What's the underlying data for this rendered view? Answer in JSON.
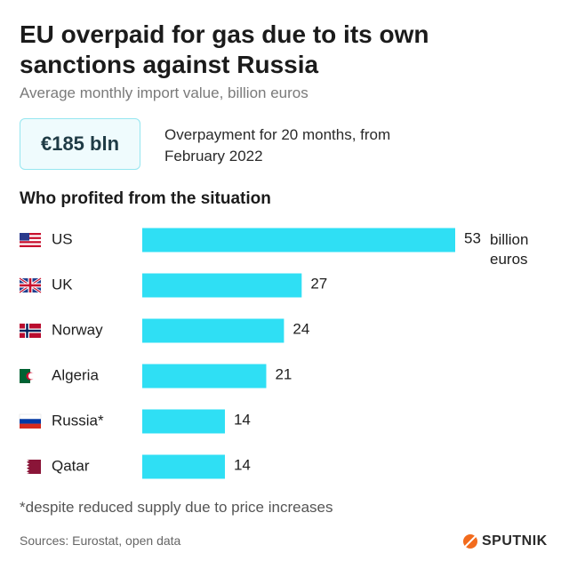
{
  "title": "EU overpaid for gas due to its own sanctions against Russia",
  "subtitle": "Average monthly import value, billion euros",
  "highlight": {
    "value": "€185 bln",
    "text": "Overpayment for 20 months, from February 2022"
  },
  "chart_data": {
    "type": "bar",
    "orientation": "horizontal",
    "title": "Who profited from the situation",
    "categories": [
      "US",
      "UK",
      "Norway",
      "Algeria",
      "Russia*",
      "Qatar"
    ],
    "values": [
      53,
      27,
      24,
      21,
      14,
      14
    ],
    "color": "#2fdff4",
    "unit_label": "billion euros"
  },
  "footnote": "*despite reduced supply due to price increases",
  "source": "Sources: Eurostat, open data",
  "brand": "SPUTNIK"
}
